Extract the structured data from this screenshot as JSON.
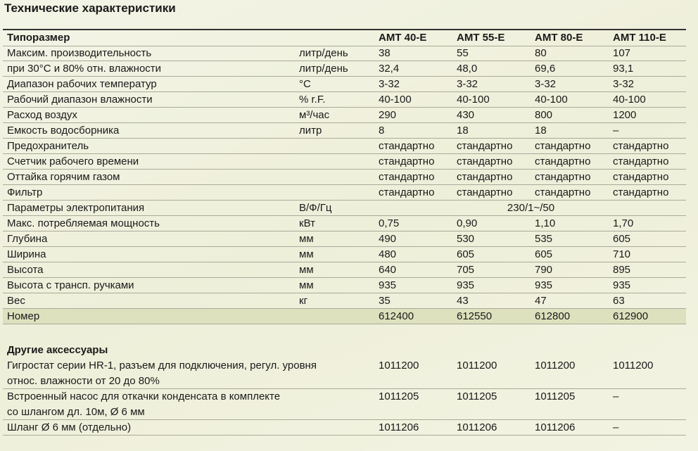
{
  "title": "Технические характеристики",
  "table": {
    "header": {
      "label": "Типоразмер",
      "models": [
        "AMT 40-E",
        "AMT 55-E",
        "AMT 80-E",
        "AMT 110-E"
      ]
    },
    "rows": [
      {
        "label": "Максим. производительность",
        "unit": "литр/день",
        "values": [
          "38",
          "55",
          "80",
          "107"
        ]
      },
      {
        "label": "при 30°C и 80% отн. влажности",
        "unit": "литр/день",
        "values": [
          "32,4",
          "48,0",
          "69,6",
          "93,1"
        ]
      },
      {
        "label": "Диапазон рабочих температур",
        "unit": "°C",
        "values": [
          "3-32",
          "3-32",
          "3-32",
          "3-32"
        ]
      },
      {
        "label": "Рабочий диапазон влажности",
        "unit": "% r.F.",
        "values": [
          "40-100",
          "40-100",
          "40-100",
          "40-100"
        ]
      },
      {
        "label": "Расход воздух",
        "unit": "м³/час",
        "values": [
          "290",
          "430",
          "800",
          "1200"
        ]
      },
      {
        "label": "Емкость водосборника",
        "unit": "литр",
        "values": [
          "8",
          "18",
          "18",
          "–"
        ]
      },
      {
        "label": "Предохранитель",
        "values": [
          "стандартно",
          "стандартно",
          "стандартно",
          "стандартно"
        ]
      },
      {
        "label": "Счетчик рабочего времени",
        "values": [
          "стандартно",
          "стандартно",
          "стандартно",
          "стандартно"
        ]
      },
      {
        "label": "Оттайка горячим газом",
        "values": [
          "стандартно",
          "стандартно",
          "стандартно",
          "стандартно"
        ]
      },
      {
        "label": "Фильтр",
        "values": [
          "стандартно",
          "стандартно",
          "стандартно",
          "стандартно"
        ]
      },
      {
        "label": "Параметры электропитания",
        "unit": "В/Ф/Гц",
        "value": "230/1~/50"
      },
      {
        "label": "Макс. потребляемая мощность",
        "unit": "кВт",
        "values": [
          "0,75",
          "0,90",
          "1,10",
          "1,70"
        ]
      },
      {
        "label": "Глубина",
        "unit": "мм",
        "values": [
          "490",
          "530",
          "535",
          "605"
        ]
      },
      {
        "label": "Ширина",
        "unit": "мм",
        "values": [
          "480",
          "605",
          "605",
          "710"
        ]
      },
      {
        "label": "Высота",
        "unit": "мм",
        "values": [
          "640",
          "705",
          "790",
          "895"
        ]
      },
      {
        "label": "Высота с трансп. ручками",
        "unit": "мм",
        "values": [
          "935",
          "935",
          "935",
          "935"
        ]
      },
      {
        "label": "Вес",
        "unit": "кг",
        "values": [
          "35",
          "43",
          "47",
          "63"
        ]
      },
      {
        "label": "Номер",
        "values": [
          "612400",
          "612550",
          "612800",
          "612900"
        ]
      }
    ]
  },
  "accessories": {
    "title": "Другие аксессуары",
    "rows": [
      {
        "lines": [
          "Гигростат серии HR-1, разъем для подключения, регул. уровня",
          "относ. влажности от 20 до 80%"
        ],
        "values": [
          "1011200",
          "1011200",
          "1011200",
          "1011200"
        ]
      },
      {
        "lines": [
          "Встроенный насос для откачки конденсата в комплекте",
          "со шлангом дл. 10м, Ø 6 мм"
        ],
        "values": [
          "1011205",
          "1011205",
          "1011205",
          "–"
        ]
      },
      {
        "lines": [
          "Шланг Ø 6 мм (отдельно)"
        ],
        "values": [
          "1011206",
          "1011206",
          "1011206",
          "–"
        ]
      }
    ]
  }
}
